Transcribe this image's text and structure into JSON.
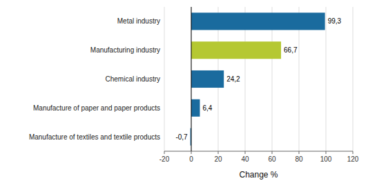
{
  "chart_data": {
    "type": "bar",
    "orientation": "horizontal",
    "categories": [
      "Manufacture of textiles and textile products",
      "Manufacture of paper and paper products",
      "Chemical industry",
      "Manufacturing industry",
      "Metal industry"
    ],
    "values": [
      -0.7,
      6.4,
      24.2,
      66.7,
      99.3
    ],
    "value_labels": [
      "-0,7",
      "6,4",
      "24,2",
      "66,7",
      "99,3"
    ],
    "data_labels": true,
    "colors": [
      "#1a6b9e",
      "#1a6b9e",
      "#1a6b9e",
      "#b5c832",
      "#1a6b9e"
    ],
    "xlabel": "Change %",
    "xlim": [
      -20,
      120
    ],
    "xticks": [
      -20,
      0,
      20,
      40,
      60,
      80,
      100,
      120
    ],
    "grid": true
  }
}
